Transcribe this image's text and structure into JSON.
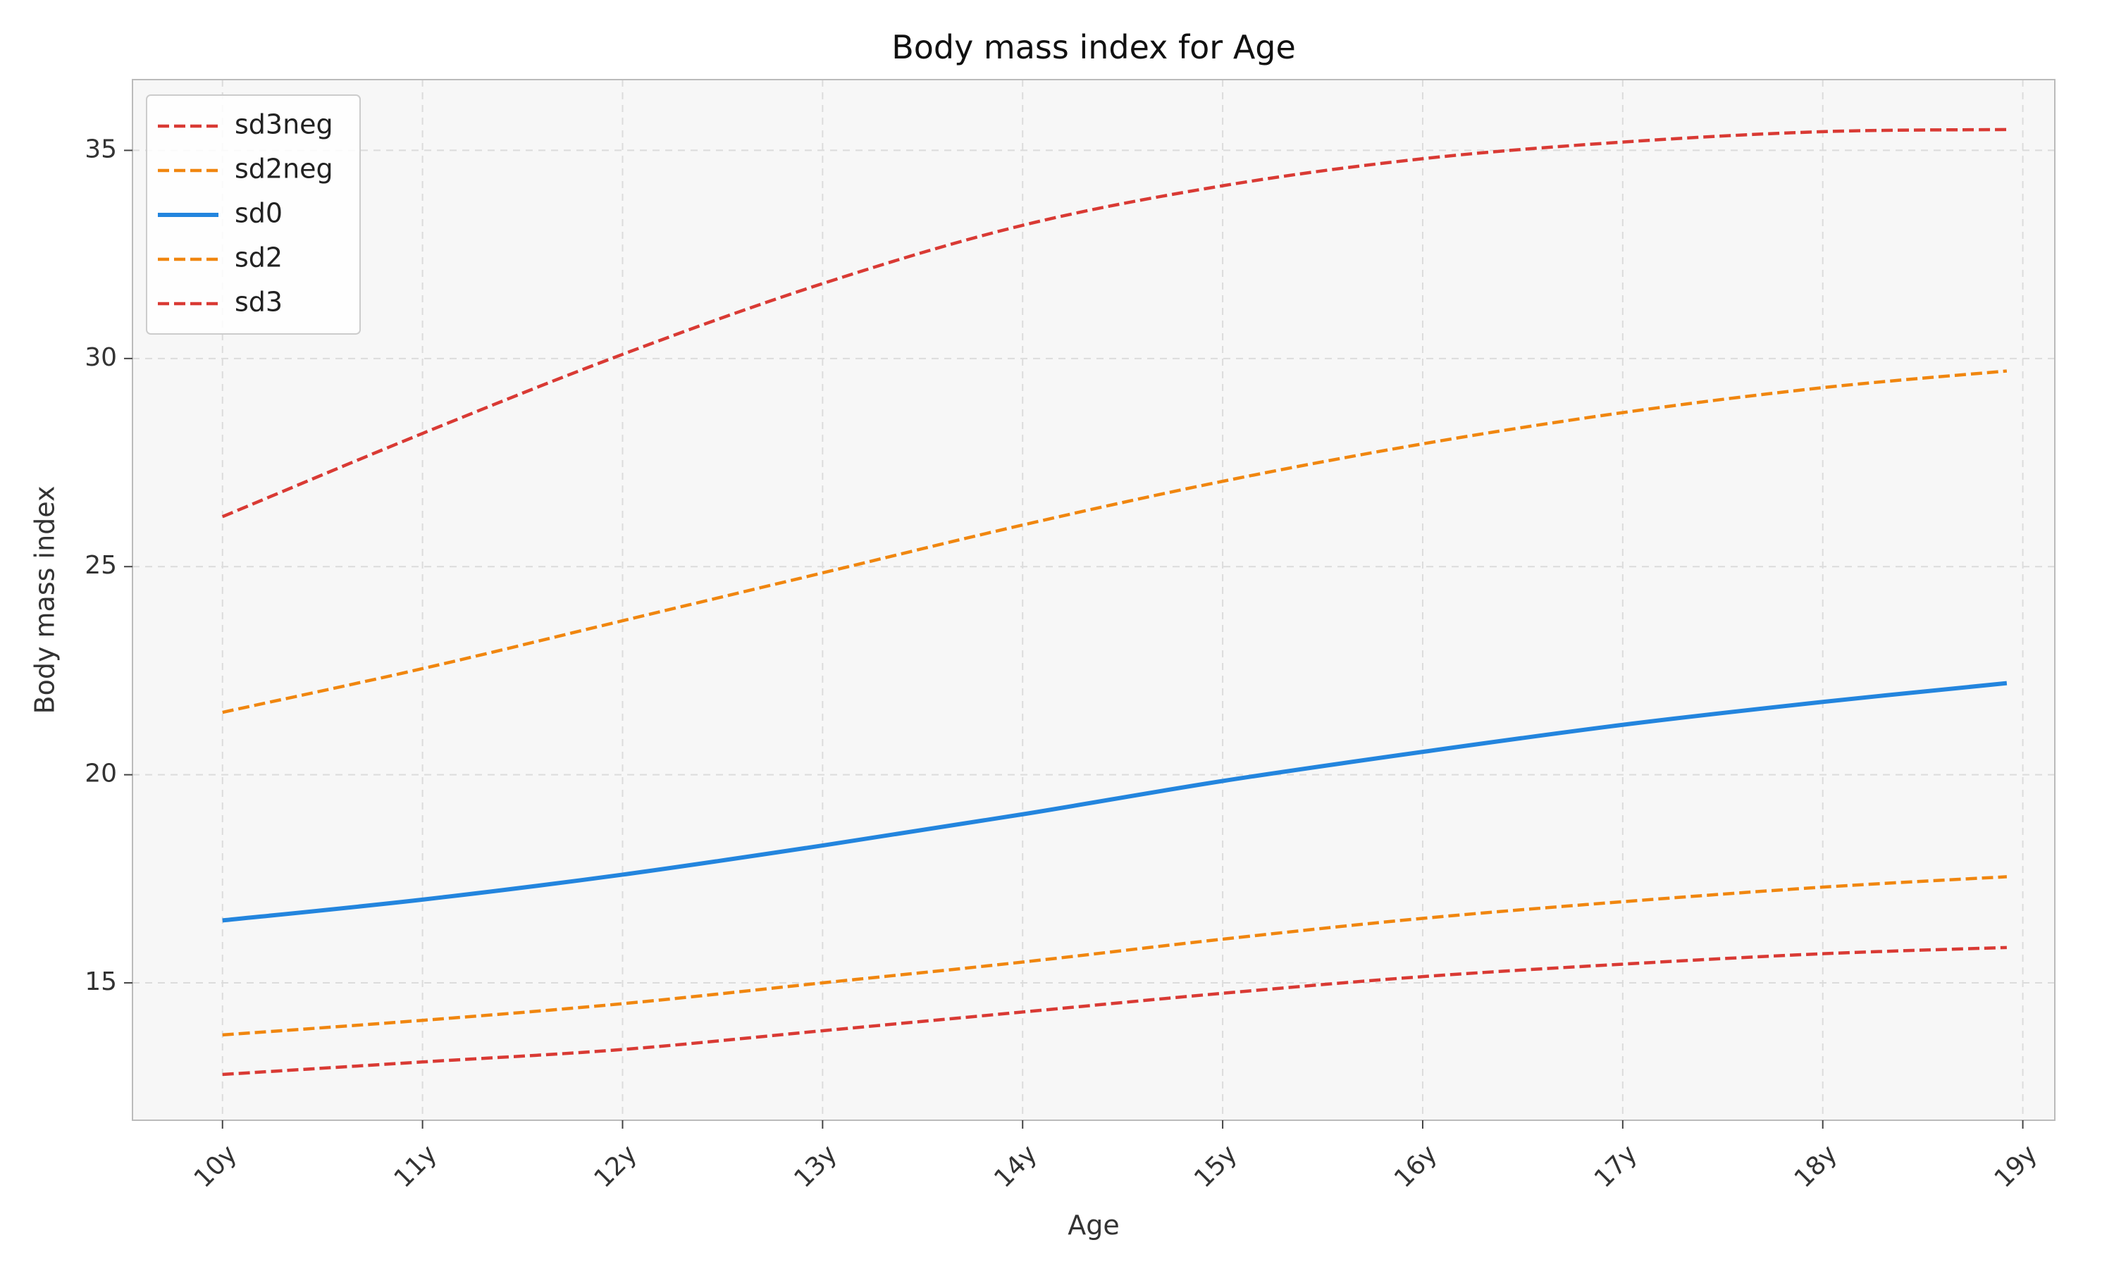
{
  "chart_data": {
    "type": "line",
    "title": "Body mass index for Age",
    "xlabel": "Age",
    "ylabel": "Body mass index",
    "x": [
      10,
      11,
      12,
      13,
      14,
      15,
      16,
      17,
      18,
      18.92
    ],
    "x_tick_values": [
      10,
      11,
      12,
      13,
      14,
      15,
      16,
      17,
      18,
      19
    ],
    "x_tick_labels": [
      "10y",
      "11y",
      "12y",
      "13y",
      "14y",
      "15y",
      "16y",
      "17y",
      "18y",
      "19y"
    ],
    "y_tick_values": [
      15,
      20,
      25,
      30,
      35
    ],
    "y_tick_labels": [
      "15",
      "20",
      "25",
      "30",
      "35"
    ],
    "xlim": [
      9.55,
      19.16
    ],
    "ylim": [
      11.7,
      36.7
    ],
    "grid": true,
    "legend_position": "top-left",
    "series": [
      {
        "name": "sd3neg",
        "style": "dashed",
        "color": "#d93a34",
        "values": [
          12.8,
          13.1,
          13.4,
          13.85,
          14.3,
          14.75,
          15.15,
          15.45,
          15.7,
          15.85
        ]
      },
      {
        "name": "sd2neg",
        "style": "dashed",
        "color": "#f0860f",
        "values": [
          13.75,
          14.1,
          14.5,
          15.0,
          15.5,
          16.05,
          16.55,
          16.95,
          17.3,
          17.55
        ]
      },
      {
        "name": "sd0",
        "style": "solid",
        "color": "#2385de",
        "values": [
          16.5,
          17.0,
          17.6,
          18.3,
          19.05,
          19.85,
          20.55,
          21.2,
          21.75,
          22.2
        ]
      },
      {
        "name": "sd2",
        "style": "dashed",
        "color": "#f0860f",
        "values": [
          21.5,
          22.55,
          23.7,
          24.85,
          26.0,
          27.05,
          27.95,
          28.7,
          29.3,
          29.7
        ]
      },
      {
        "name": "sd3",
        "style": "dashed",
        "color": "#d93a34",
        "values": [
          26.2,
          28.2,
          30.1,
          31.8,
          33.2,
          34.15,
          34.8,
          35.2,
          35.45,
          35.5
        ]
      }
    ]
  },
  "colors": {
    "plot_background": "#f7f7f7",
    "grid": "#dcdcdc",
    "axes": "#bbbbbb"
  }
}
